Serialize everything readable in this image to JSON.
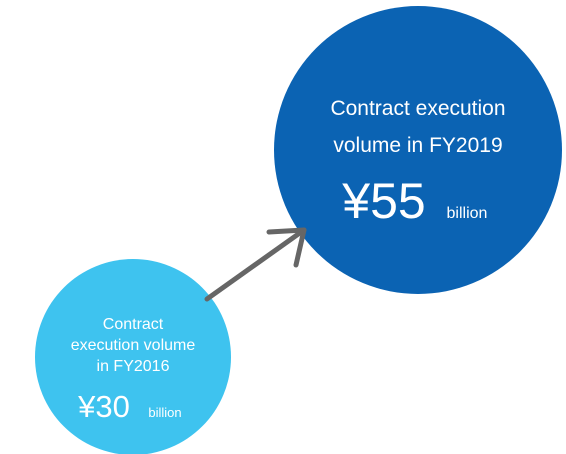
{
  "nodes": [
    {
      "lines": [
        "Contract",
        "execution volume",
        "in FY2016"
      ],
      "amount": "¥30",
      "unit": "billion"
    },
    {
      "lines": [
        "Contract execution",
        "volume in FY2019"
      ],
      "amount": "¥55",
      "unit": "billion"
    }
  ]
}
